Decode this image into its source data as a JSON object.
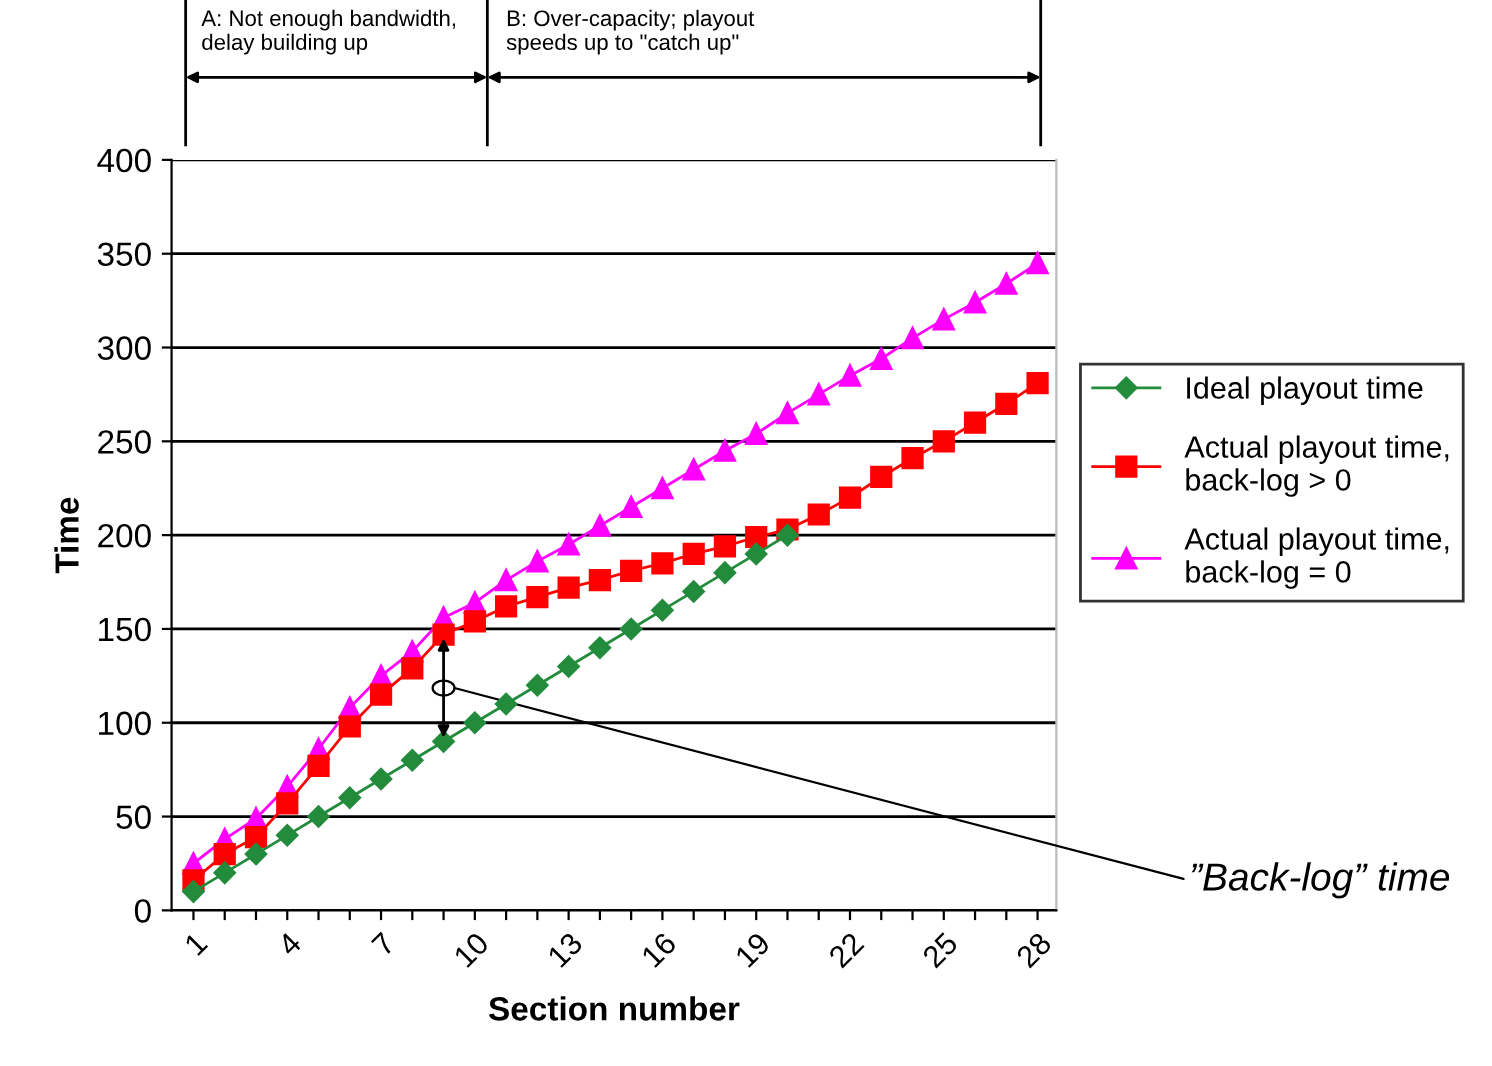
{
  "chart_data": {
    "type": "line",
    "xlabel": "Section number",
    "ylabel": "Time",
    "categories": [
      "1",
      null,
      null,
      "4",
      null,
      null,
      "7",
      null,
      null,
      "10",
      null,
      null,
      "13",
      null,
      null,
      "16",
      null,
      null,
      "19",
      null,
      null,
      "22",
      null,
      null,
      "25",
      null,
      null,
      "28"
    ],
    "series": [
      {
        "name": "Ideal playout time",
        "color": "#228b3c",
        "marker": "diamond",
        "values": [
          10,
          20,
          30,
          40,
          50,
          60,
          70,
          80,
          90,
          100,
          110,
          120,
          130,
          140,
          150,
          160,
          170,
          180,
          190,
          200,
          null,
          null,
          null,
          null,
          null,
          null,
          null,
          null
        ]
      },
      {
        "name": "Actual playout time,\nback-log > 0",
        "color": "#ff0000",
        "marker": "square",
        "values": [
          16,
          30,
          39,
          57,
          77,
          98,
          115,
          129,
          147,
          154,
          162,
          167,
          172,
          176,
          181,
          185,
          190,
          194,
          199,
          203,
          211,
          220,
          231,
          241,
          250,
          260,
          270,
          281
        ]
      },
      {
        "name": "Actual playout time,\nback-log = 0",
        "color": "#ff00ff",
        "marker": "triangle",
        "values": [
          25,
          38,
          49,
          66,
          86,
          108,
          125,
          138,
          156,
          164,
          176,
          186,
          195,
          205,
          215,
          225,
          235,
          245,
          254,
          265,
          275,
          285,
          294,
          305,
          315,
          324,
          334,
          345
        ]
      }
    ],
    "ylim": [
      0,
      400
    ],
    "yticks": [
      0,
      50,
      100,
      150,
      200,
      250,
      300,
      350,
      400
    ],
    "grid": "y",
    "legend": "right",
    "annotations": [
      "A: Not enough bandwidth,\ndelay building up",
      "B: Over-capacity; playout\nspeeds up to \"catch up\"",
      "”Back-log” time"
    ]
  }
}
